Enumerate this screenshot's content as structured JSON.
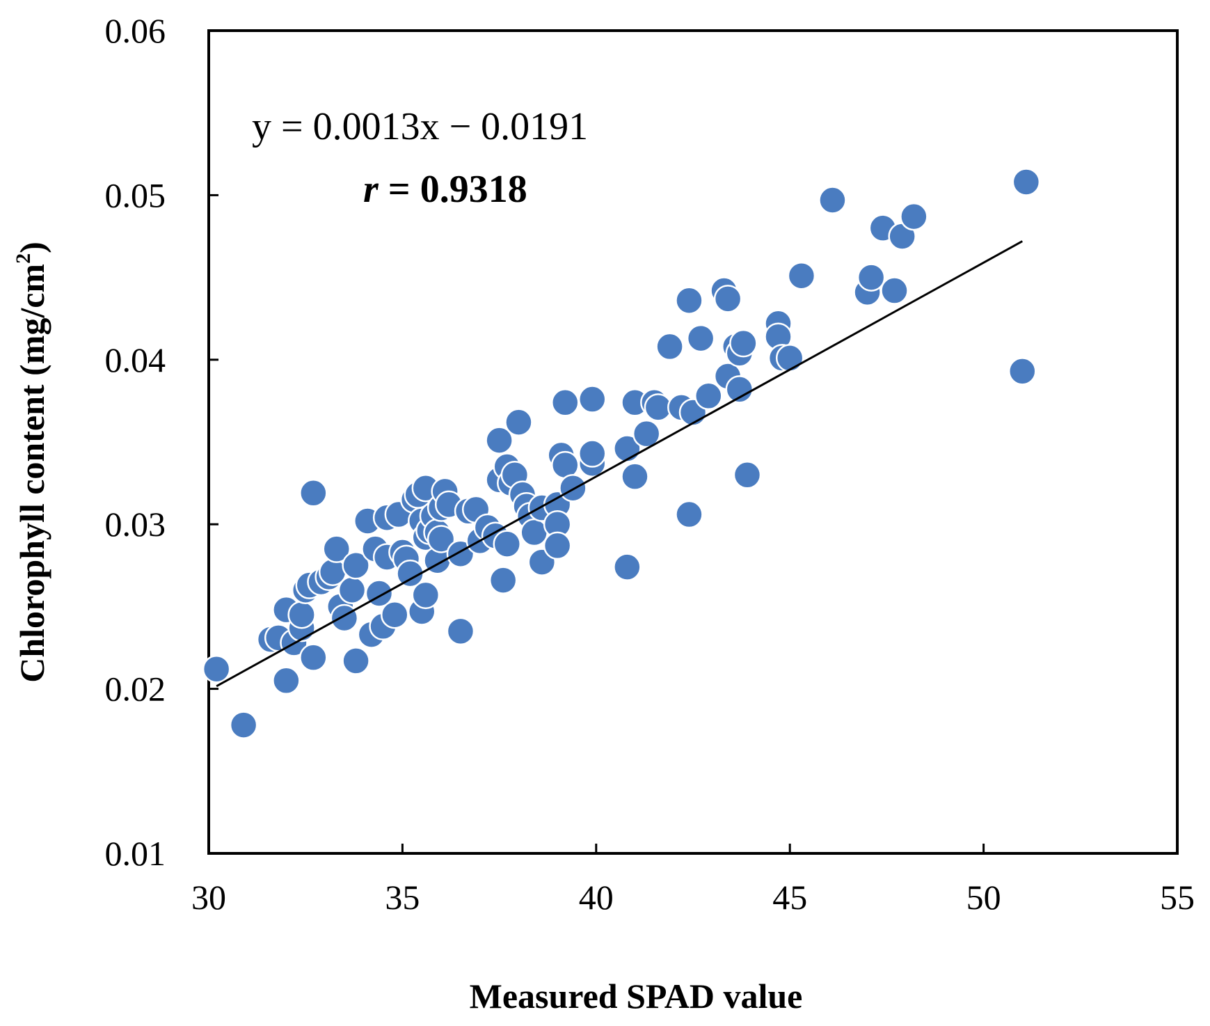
{
  "chart_data": {
    "type": "scatter",
    "title": "",
    "xlabel": "Measured SPAD value",
    "ylabel_main": "Chlorophyll content (mg/cm",
    "ylabel_sup": "2",
    "ylabel_close": ")",
    "xlim": [
      30,
      55
    ],
    "ylim": [
      0.01,
      0.06
    ],
    "x_ticks": [
      30,
      35,
      40,
      45,
      50,
      55
    ],
    "x_tick_labels": [
      "30",
      "35",
      "40",
      "45",
      "50",
      "55"
    ],
    "y_ticks": [
      0.01,
      0.02,
      0.03,
      0.04,
      0.05,
      0.06
    ],
    "y_tick_labels": [
      "0.01",
      "0.02",
      "0.03",
      "0.04",
      "0.05",
      "0.06"
    ],
    "grid": false,
    "legend": "none",
    "point_color": "#4a7cc0",
    "point_edge_color": "#ffffff",
    "line_color": "#000000",
    "annotation": {
      "equation": "y = 0.0013x − 0.0191",
      "r_symbol": "r",
      "r_rest": " = 0.9318"
    },
    "trendline": {
      "slope": 0.0013,
      "intercept": -0.0191,
      "x_range": [
        30.2,
        51.0
      ]
    },
    "points": [
      [
        30.2,
        0.0212
      ],
      [
        30.9,
        0.0178
      ],
      [
        31.6,
        0.023
      ],
      [
        31.8,
        0.0231
      ],
      [
        32.0,
        0.0205
      ],
      [
        32.0,
        0.0248
      ],
      [
        32.2,
        0.0228
      ],
      [
        32.4,
        0.0237
      ],
      [
        32.4,
        0.0245
      ],
      [
        32.5,
        0.026
      ],
      [
        32.6,
        0.0263
      ],
      [
        32.7,
        0.0319
      ],
      [
        32.7,
        0.0219
      ],
      [
        32.9,
        0.0265
      ],
      [
        33.1,
        0.0268
      ],
      [
        33.2,
        0.0271
      ],
      [
        33.3,
        0.0285
      ],
      [
        33.4,
        0.025
      ],
      [
        33.5,
        0.0243
      ],
      [
        33.7,
        0.026
      ],
      [
        33.8,
        0.0275
      ],
      [
        33.8,
        0.0217
      ],
      [
        34.1,
        0.0302
      ],
      [
        34.2,
        0.0233
      ],
      [
        34.3,
        0.0285
      ],
      [
        34.4,
        0.0258
      ],
      [
        34.5,
        0.0238
      ],
      [
        34.6,
        0.0304
      ],
      [
        34.6,
        0.028
      ],
      [
        34.8,
        0.0245
      ],
      [
        34.9,
        0.0306
      ],
      [
        35.0,
        0.0283
      ],
      [
        35.1,
        0.0279
      ],
      [
        35.2,
        0.027
      ],
      [
        35.3,
        0.0315
      ],
      [
        35.4,
        0.0318
      ],
      [
        35.5,
        0.0302
      ],
      [
        35.5,
        0.0247
      ],
      [
        35.6,
        0.0292
      ],
      [
        35.6,
        0.0322
      ],
      [
        35.6,
        0.0257
      ],
      [
        35.7,
        0.0296
      ],
      [
        35.8,
        0.0305
      ],
      [
        35.9,
        0.0278
      ],
      [
        35.9,
        0.0295
      ],
      [
        36.0,
        0.031
      ],
      [
        36.0,
        0.0291
      ],
      [
        36.1,
        0.032
      ],
      [
        36.2,
        0.0312
      ],
      [
        36.5,
        0.0282
      ],
      [
        36.5,
        0.0235
      ],
      [
        36.7,
        0.0308
      ],
      [
        36.9,
        0.0309
      ],
      [
        37.0,
        0.029
      ],
      [
        37.2,
        0.0298
      ],
      [
        37.4,
        0.0293
      ],
      [
        37.5,
        0.0351
      ],
      [
        37.5,
        0.0327
      ],
      [
        37.6,
        0.0266
      ],
      [
        37.7,
        0.0335
      ],
      [
        37.7,
        0.0288
      ],
      [
        37.8,
        0.0325
      ],
      [
        37.9,
        0.033
      ],
      [
        38.0,
        0.0362
      ],
      [
        38.1,
        0.0318
      ],
      [
        38.2,
        0.0311
      ],
      [
        38.3,
        0.0305
      ],
      [
        38.4,
        0.0295
      ],
      [
        38.6,
        0.031
      ],
      [
        38.6,
        0.0277
      ],
      [
        39.0,
        0.0312
      ],
      [
        39.0,
        0.03
      ],
      [
        39.0,
        0.0287
      ],
      [
        39.1,
        0.0342
      ],
      [
        39.2,
        0.0374
      ],
      [
        39.2,
        0.0336
      ],
      [
        39.4,
        0.0322
      ],
      [
        39.9,
        0.0376
      ],
      [
        39.9,
        0.0337
      ],
      [
        39.9,
        0.0343
      ],
      [
        40.8,
        0.0346
      ],
      [
        40.8,
        0.0274
      ],
      [
        41.0,
        0.0329
      ],
      [
        41.0,
        0.0374
      ],
      [
        41.3,
        0.0355
      ],
      [
        41.5,
        0.0374
      ],
      [
        41.6,
        0.0371
      ],
      [
        41.9,
        0.0408
      ],
      [
        42.2,
        0.0371
      ],
      [
        42.4,
        0.0436
      ],
      [
        42.4,
        0.0306
      ],
      [
        42.5,
        0.0368
      ],
      [
        42.7,
        0.0413
      ],
      [
        42.9,
        0.0378
      ],
      [
        43.3,
        0.0442
      ],
      [
        43.4,
        0.0437
      ],
      [
        43.4,
        0.039
      ],
      [
        43.6,
        0.0408
      ],
      [
        43.7,
        0.0404
      ],
      [
        43.7,
        0.0382
      ],
      [
        43.8,
        0.041
      ],
      [
        43.9,
        0.033
      ],
      [
        44.7,
        0.0422
      ],
      [
        44.7,
        0.0414
      ],
      [
        44.8,
        0.0401
      ],
      [
        45.0,
        0.0401
      ],
      [
        45.3,
        0.0451
      ],
      [
        46.1,
        0.0497
      ],
      [
        47.0,
        0.0441
      ],
      [
        47.1,
        0.045
      ],
      [
        47.4,
        0.048
      ],
      [
        47.7,
        0.0442
      ],
      [
        47.9,
        0.0475
      ],
      [
        48.2,
        0.0487
      ],
      [
        51.0,
        0.0393
      ],
      [
        51.1,
        0.0508
      ]
    ]
  }
}
